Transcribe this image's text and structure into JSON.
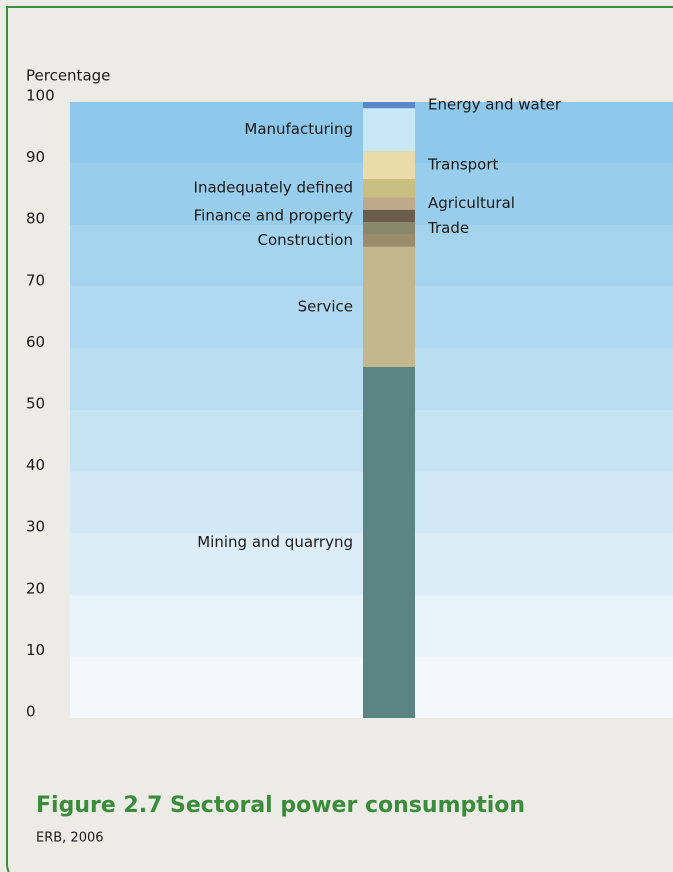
{
  "chart_data": {
    "type": "stacked_bar",
    "title": "Figure 2.7  Sectoral power consumption",
    "source": "ERB, 2006",
    "y_label": "Percentage",
    "ylim": [
      0,
      100
    ],
    "yticks": [
      0,
      10,
      20,
      30,
      40,
      50,
      60,
      70,
      80,
      90,
      100
    ],
    "series": [
      {
        "name": "Mining and quarryng",
        "color": "#5b8582",
        "values": [
          57
        ]
      },
      {
        "name": "Service",
        "color": "#c2b78e",
        "values": [
          19.5
        ]
      },
      {
        "name": "Construction",
        "color": "#9b8b6b",
        "values": [
          2
        ]
      },
      {
        "name": "Trade",
        "color": "#8a876a",
        "values": [
          2
        ]
      },
      {
        "name": "Finance and property",
        "color": "#6a5d4c",
        "values": [
          2
        ]
      },
      {
        "name": "Agricultural",
        "color": "#bcaa8a",
        "values": [
          2
        ]
      },
      {
        "name": "Inadequately defined",
        "color": "#c9be82",
        "values": [
          3
        ]
      },
      {
        "name": "Transport",
        "color": "#e9dcaa",
        "values": [
          4.5
        ]
      },
      {
        "name": "Manufacturing",
        "color": "#c9e8f7",
        "values": [
          7
        ]
      },
      {
        "name": "Energy and water",
        "color": "#5b86c8",
        "values": [
          1
        ]
      }
    ]
  }
}
